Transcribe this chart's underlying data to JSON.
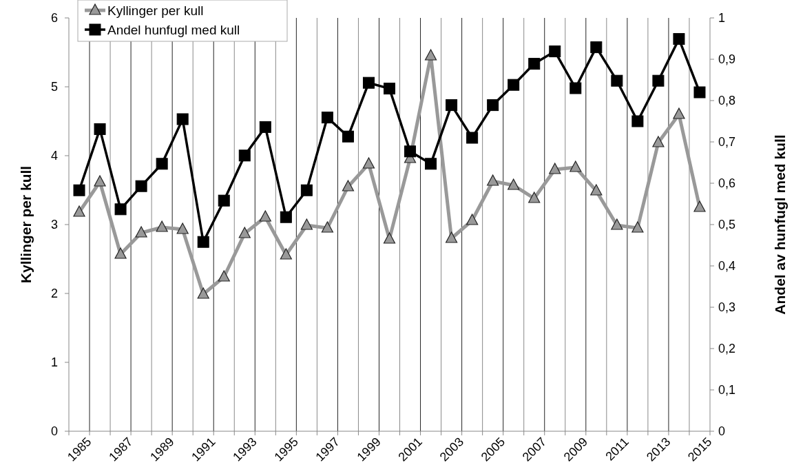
{
  "chart_data": {
    "type": "line",
    "ylabel": "Kyllinger per kull",
    "y2label": "Andel av hunfugl med kull",
    "categories": [
      "1985",
      null,
      "1987",
      null,
      "1989",
      null,
      "1991",
      null,
      "1993",
      null,
      "1995",
      null,
      "1997",
      null,
      "1999",
      null,
      "2001",
      null,
      "2003",
      null,
      "2005",
      null,
      "2007",
      null,
      "2009",
      null,
      "2011",
      null,
      "2013",
      null,
      "2015"
    ],
    "series": [
      {
        "name": "Kyllinger per kull",
        "color": "#999999",
        "marker": "triangle",
        "values": [
          3.18,
          3.62,
          2.57,
          2.88,
          2.96,
          2.93,
          1.99,
          2.24,
          2.87,
          3.11,
          2.56,
          2.99,
          2.95,
          3.55,
          3.88,
          2.79,
          3.96,
          5.45,
          2.8,
          3.06,
          3.63,
          3.57,
          3.38,
          3.8,
          3.83,
          3.49,
          2.99,
          2.95,
          4.19,
          4.6,
          3.25
        ]
      },
      {
        "name": "Andel hunfugl med kull",
        "color": "#000000",
        "marker": "square",
        "axis": "y2",
        "values": [
          0.583,
          0.731,
          0.537,
          0.593,
          0.647,
          0.755,
          0.458,
          0.558,
          0.667,
          0.736,
          0.518,
          0.583,
          0.759,
          0.713,
          0.843,
          0.829,
          0.677,
          0.647,
          0.789,
          0.71,
          0.789,
          0.838,
          0.889,
          0.919,
          0.83,
          0.929,
          0.848,
          0.75,
          0.848,
          0.949,
          0.82
        ]
      }
    ],
    "ylim": [
      0,
      6
    ],
    "yticks": [
      0,
      1,
      2,
      3,
      4,
      5,
      6
    ],
    "y2lim": [
      0,
      1
    ],
    "y2ticks": [
      0,
      {
        "value": 0.1,
        "label": "0,1"
      },
      {
        "value": 0.2,
        "label": "0,2"
      },
      {
        "value": 0.3,
        "label": "0,3"
      },
      {
        "value": 0.4,
        "label": "0,4"
      },
      {
        "value": 0.5,
        "label": "0,5"
      },
      {
        "value": 0.6,
        "label": "0,6"
      },
      {
        "value": 0.7,
        "label": "0,7"
      },
      {
        "value": 0.8,
        "label": "0,8"
      },
      {
        "value": 0.9,
        "label": "0,9"
      },
      1
    ],
    "grid": "x",
    "legend": "top left"
  }
}
